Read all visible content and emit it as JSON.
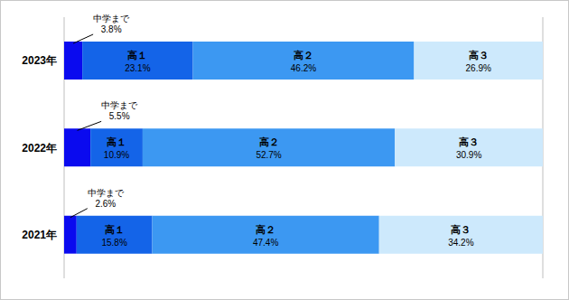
{
  "chart_data": {
    "type": "bar",
    "orientation": "horizontal",
    "stacked": true,
    "categories": [
      "2023年",
      "2022年",
      "2021年"
    ],
    "series": [
      {
        "name": "中学まで",
        "color": "#0a0aef",
        "values": [
          3.8,
          5.5,
          2.6
        ],
        "value_labels": [
          "3.8%",
          "5.5%",
          "2.6%"
        ]
      },
      {
        "name": "高１",
        "color": "#1464e8",
        "values": [
          23.1,
          10.9,
          15.8
        ],
        "value_labels": [
          "23.1%",
          "10.9%",
          "15.8%"
        ]
      },
      {
        "name": "高２",
        "color": "#3c98f2",
        "values": [
          46.2,
          52.7,
          47.4
        ],
        "value_labels": [
          "46.2%",
          "52.7%",
          "47.4%"
        ]
      },
      {
        "name": "高３",
        "color": "#cde9fc",
        "values": [
          26.9,
          30.9,
          34.2
        ],
        "value_labels": [
          "26.9%",
          "30.9%",
          "34.2%"
        ]
      }
    ],
    "xlim": [
      0,
      100
    ],
    "xticks": [
      0,
      10,
      20,
      30,
      40,
      50,
      60,
      70,
      80,
      90,
      100
    ],
    "grid": true,
    "data_labels": true,
    "tick_labels": "y"
  }
}
